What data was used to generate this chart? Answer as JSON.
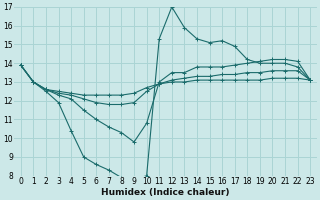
{
  "xlabel": "Humidex (Indice chaleur)",
  "bg_color": "#cce8e8",
  "grid_color": "#aad4d4",
  "line_color": "#1a6b6b",
  "xlim": [
    -0.5,
    23.5
  ],
  "ylim": [
    8,
    17
  ],
  "xticks": [
    0,
    1,
    2,
    3,
    4,
    5,
    6,
    7,
    8,
    9,
    10,
    11,
    12,
    13,
    14,
    15,
    16,
    17,
    18,
    19,
    20,
    21,
    22,
    23
  ],
  "yticks": [
    8,
    9,
    10,
    11,
    12,
    13,
    14,
    15,
    16,
    17
  ],
  "curve1_x": [
    0,
    1,
    2,
    3,
    4,
    5,
    6,
    7,
    8,
    9,
    10,
    11,
    12,
    13,
    14,
    15,
    16,
    17,
    18,
    19,
    20,
    21,
    22,
    23
  ],
  "curve1_y": [
    13.9,
    13.0,
    12.5,
    11.9,
    10.4,
    9.0,
    8.6,
    8.3,
    7.9,
    7.8,
    8.0,
    15.3,
    17.0,
    15.9,
    15.3,
    15.1,
    15.2,
    14.9,
    14.2,
    14.0,
    14.0,
    14.0,
    13.8,
    13.1
  ],
  "curve2_x": [
    0,
    1,
    2,
    3,
    4,
    5,
    6,
    7,
    8,
    9,
    10,
    11,
    12,
    13,
    14,
    15,
    16,
    17,
    18,
    19,
    20,
    21,
    22,
    23
  ],
  "curve2_y": [
    13.9,
    13.0,
    12.6,
    12.3,
    12.1,
    11.5,
    11.0,
    10.6,
    10.3,
    9.8,
    10.8,
    13.0,
    13.5,
    13.5,
    13.8,
    13.8,
    13.8,
    13.9,
    14.0,
    14.1,
    14.2,
    14.2,
    14.1,
    13.1
  ],
  "curve3_x": [
    0,
    1,
    2,
    3,
    4,
    5,
    6,
    7,
    8,
    9,
    10,
    11,
    12,
    13,
    14,
    15,
    16,
    17,
    18,
    19,
    20,
    21,
    22,
    23
  ],
  "curve3_y": [
    13.9,
    13.0,
    12.6,
    12.4,
    12.3,
    12.1,
    11.9,
    11.8,
    11.8,
    11.9,
    12.5,
    12.9,
    13.1,
    13.2,
    13.3,
    13.3,
    13.4,
    13.4,
    13.5,
    13.5,
    13.6,
    13.6,
    13.6,
    13.1
  ],
  "curve4_x": [
    0,
    1,
    2,
    3,
    4,
    5,
    6,
    7,
    8,
    9,
    10,
    11,
    12,
    13,
    14,
    15,
    16,
    17,
    18,
    19,
    20,
    21,
    22,
    23
  ],
  "curve4_y": [
    13.9,
    13.0,
    12.6,
    12.5,
    12.4,
    12.3,
    12.3,
    12.3,
    12.3,
    12.4,
    12.7,
    12.9,
    13.0,
    13.0,
    13.1,
    13.1,
    13.1,
    13.1,
    13.1,
    13.1,
    13.2,
    13.2,
    13.2,
    13.1
  ]
}
